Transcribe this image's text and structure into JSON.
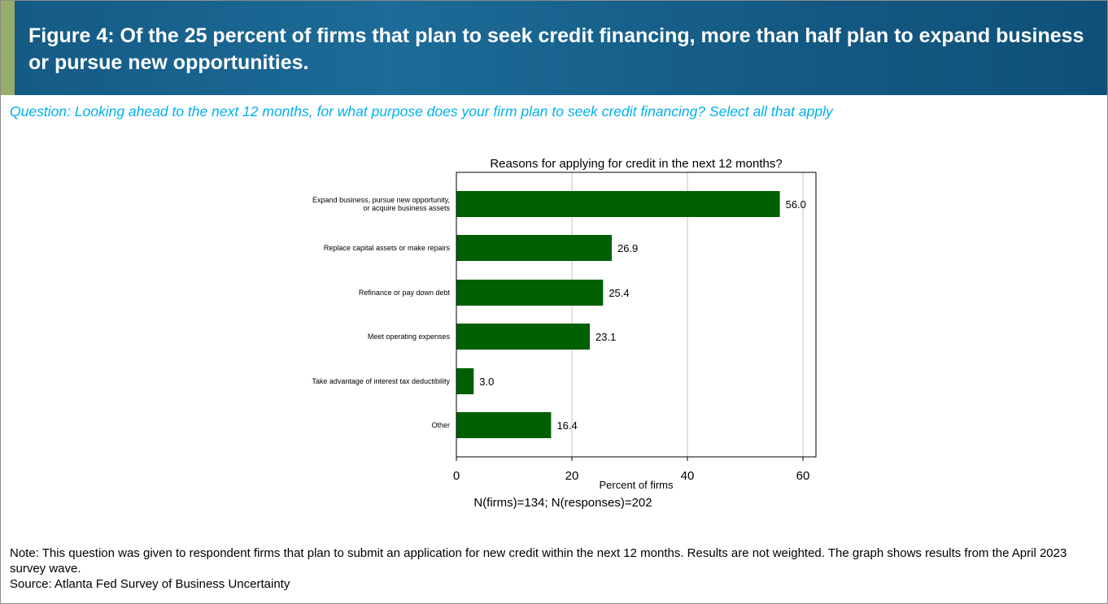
{
  "header": {
    "title": "Figure 4: Of the 25 percent of firms that plan to seek credit financing, more than half plan to expand business or pursue new opportunities."
  },
  "question": "Question: Looking ahead to the next 12 months, for what purpose does your firm plan to seek credit financing? Select all that apply",
  "chart_data": {
    "type": "bar",
    "orientation": "horizontal",
    "title": "Reasons for applying for credit in the next 12 months?",
    "categories": [
      "Expand business, pursue new opportunity,\nor acquire business assets",
      "Replace capital assets or make repairs",
      "Refinance or pay down debt",
      "Meet operating expenses",
      "Take advantage of interest tax deductibility",
      "Other"
    ],
    "values": [
      56.0,
      26.9,
      25.4,
      23.1,
      3.0,
      16.4
    ],
    "data_labels": [
      "56.0",
      "26.9",
      "25.4",
      "23.1",
      "3.0",
      "16.4"
    ],
    "xlabel": "Percent of firms",
    "xlim": [
      0,
      62
    ],
    "xticks": [
      0,
      20,
      40,
      60
    ],
    "grid": true,
    "bar_color": "#005f00",
    "footnote": "N(firms)=134; N(responses)=202"
  },
  "note": "Note: This question was given to respondent firms that plan to submit an application for new credit within the next 12 months. Results are not weighted. The graph shows results from the April 2023 survey wave.",
  "source": "Source: Atlanta Fed Survey of Business Uncertainty",
  "colors": {
    "header": "#145a84",
    "accent_strip": "#98ad6b",
    "question": "#00b0f0"
  }
}
